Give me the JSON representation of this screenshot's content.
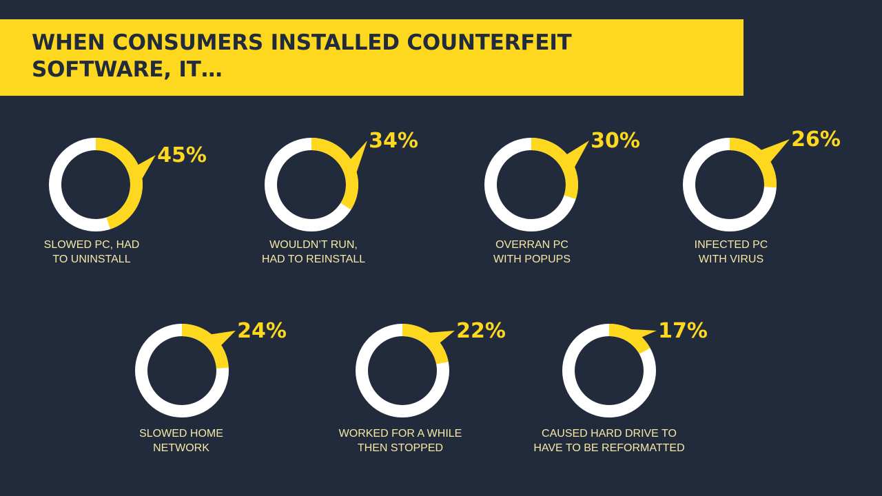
{
  "title": "WHEN CONSUMERS INSTALLED COUNTERFEIT\nSOFTWARE, IT…",
  "colors": {
    "background": "#212b3c",
    "accent": "#fdd81f",
    "ring_remainder": "#ffffff",
    "label_text": "#f7e9a5"
  },
  "chart_data": {
    "type": "pie",
    "variant": "donut",
    "categories": [
      [
        "SLOWED PC, HAD",
        "TO UNINSTALL"
      ],
      [
        "WOULDN’T RUN,",
        "HAD TO REINSTALL"
      ],
      [
        "OVERRAN PC",
        "WITH POPUPS"
      ],
      [
        "INFECTED PC",
        "WITH VIRUS"
      ],
      [
        "SLOWED HOME",
        "NETWORK"
      ],
      [
        "WORKED FOR A WHILE",
        "THEN STOPPED"
      ],
      [
        "CAUSED HARD DRIVE TO",
        "HAVE TO BE REFORMATTED"
      ]
    ],
    "values": [
      45,
      34,
      30,
      26,
      24,
      22,
      17
    ],
    "value_labels": [
      "45%",
      "34%",
      "30%",
      "26%",
      "24%",
      "22%",
      "17%"
    ],
    "unit": "%"
  }
}
